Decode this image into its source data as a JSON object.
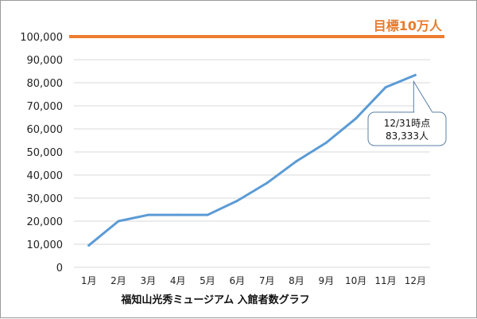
{
  "chart_data": {
    "type": "line",
    "xlabel": "福知山光秀ミュージアム 入館者数グラフ",
    "ylabel": "",
    "ylim": [
      0,
      100000
    ],
    "yticks": [
      "0",
      "10,000",
      "20,000",
      "30,000",
      "40,000",
      "50,000",
      "60,000",
      "70,000",
      "80,000",
      "90,000",
      "100,000"
    ],
    "yticks_values": [
      0,
      10000,
      20000,
      30000,
      40000,
      50000,
      60000,
      70000,
      80000,
      90000,
      100000
    ],
    "categories": [
      "1月",
      "2月",
      "3月",
      "4月",
      "5月",
      "6月",
      "7月",
      "8月",
      "9月",
      "10月",
      "11月",
      "12月"
    ],
    "series": [
      {
        "name": "",
        "color": "#5b9bd5",
        "values": [
          9500,
          20000,
          22700,
          22700,
          22700,
          28800,
          36500,
          46000,
          54000,
          64500,
          78000,
          83333
        ]
      }
    ],
    "target_line": {
      "value": 100000,
      "label": "目標10万人",
      "color": "#ed7d31"
    },
    "annotation": {
      "line1": "12/31時点",
      "line2": "83,333人",
      "category": "12月"
    },
    "grid": true,
    "gridline_color": "#d9d9d9"
  }
}
